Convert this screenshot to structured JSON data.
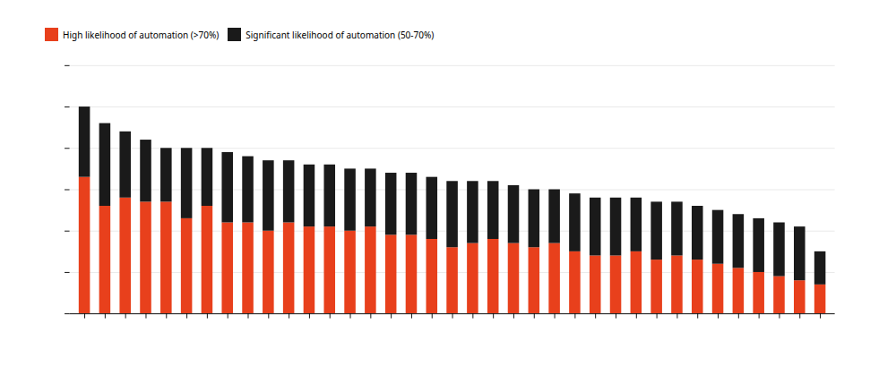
{
  "chart_data": {
    "type": "bar",
    "stacked": true,
    "categories": [
      null,
      null,
      null,
      null,
      null,
      null,
      null,
      null,
      null,
      null,
      null,
      null,
      null,
      null,
      null,
      null,
      null,
      null,
      null,
      null,
      null,
      null,
      null,
      null,
      null,
      null,
      null,
      null,
      null,
      null,
      null,
      null,
      null,
      null,
      null,
      null,
      null
    ],
    "series": [
      {
        "name": "High likelihood of automation (>70%)",
        "color": "#E8401C",
        "values": [
          33,
          26,
          28,
          27,
          27,
          23,
          26,
          22,
          22,
          20,
          22,
          21,
          21,
          20,
          21,
          19,
          19,
          18,
          16,
          17,
          18,
          17,
          16,
          17,
          15,
          14,
          14,
          15,
          13,
          14,
          13,
          12,
          11,
          10,
          9,
          8,
          7
        ]
      },
      {
        "name": "Significant likelihood of automation (50-70%)",
        "color": "#1A1A1A",
        "values": [
          17,
          20,
          16,
          15,
          13,
          17,
          14,
          17,
          16,
          17,
          15,
          15,
          15,
          15,
          14,
          15,
          15,
          15,
          16,
          15,
          14,
          14,
          14,
          13,
          14,
          14,
          14,
          13,
          14,
          13,
          13,
          13,
          13,
          13,
          13,
          13,
          8
        ]
      }
    ],
    "ylim": [
      0,
      60
    ],
    "yticks": [
      0,
      10,
      20,
      30,
      40,
      50,
      60
    ],
    "grid": true,
    "legend": "top",
    "tick_labels": false
  }
}
